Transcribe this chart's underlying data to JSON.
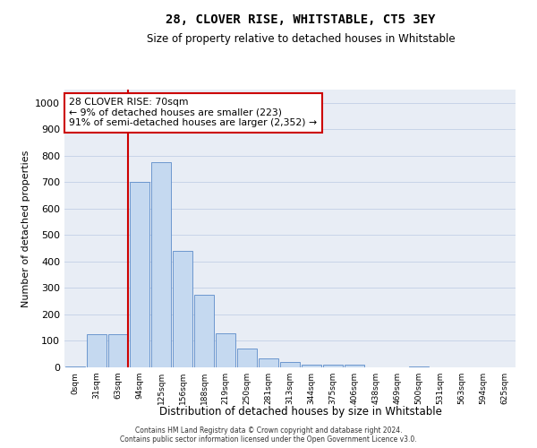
{
  "title": "28, CLOVER RISE, WHITSTABLE, CT5 3EY",
  "subtitle": "Size of property relative to detached houses in Whitstable",
  "xlabel": "Distribution of detached houses by size in Whitstable",
  "ylabel": "Number of detached properties",
  "bar_color": "#c5d9f0",
  "bar_edge_color": "#5b8bc9",
  "categories": [
    "0sqm",
    "31sqm",
    "63sqm",
    "94sqm",
    "125sqm",
    "156sqm",
    "188sqm",
    "219sqm",
    "250sqm",
    "281sqm",
    "313sqm",
    "344sqm",
    "375sqm",
    "406sqm",
    "438sqm",
    "469sqm",
    "500sqm",
    "531sqm",
    "563sqm",
    "594sqm",
    "625sqm"
  ],
  "values": [
    5,
    125,
    125,
    700,
    775,
    440,
    275,
    130,
    70,
    35,
    22,
    10,
    10,
    10,
    0,
    0,
    5,
    0,
    0,
    0,
    0
  ],
  "property_bin_index": 2,
  "annotation_text": "28 CLOVER RISE: 70sqm\n← 9% of detached houses are smaller (223)\n91% of semi-detached houses are larger (2,352) →",
  "annotation_box_color": "#ffffff",
  "annotation_box_edge_color": "#cc0000",
  "marker_line_color": "#cc0000",
  "ylim": [
    0,
    1050
  ],
  "yticks": [
    0,
    100,
    200,
    300,
    400,
    500,
    600,
    700,
    800,
    900,
    1000
  ],
  "grid_color": "#c8d4e8",
  "background_color": "#e8edf5",
  "footer_line1": "Contains HM Land Registry data © Crown copyright and database right 2024.",
  "footer_line2": "Contains public sector information licensed under the Open Government Licence v3.0."
}
